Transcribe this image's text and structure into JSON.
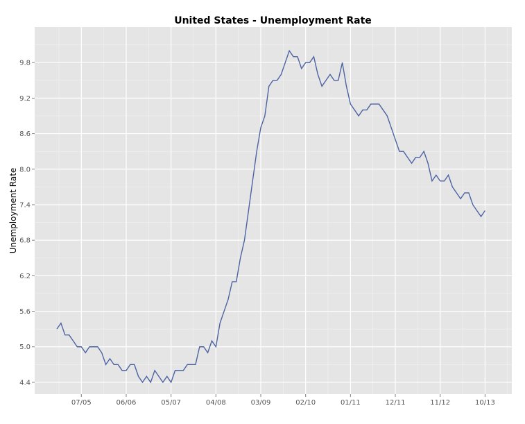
{
  "chart_data": {
    "type": "line",
    "title": "United States - Unemployment Rate",
    "xlabel": "",
    "ylabel": "Unemployment Rate",
    "x_tick_labels": [
      "07/05",
      "06/06",
      "05/07",
      "04/08",
      "03/09",
      "02/10",
      "01/11",
      "12/11",
      "11/12",
      "10/13"
    ],
    "y_ticks": [
      4.4,
      5.0,
      5.6,
      6.2,
      6.8,
      7.4,
      8.0,
      8.6,
      9.2,
      9.8
    ],
    "y_tick_labels": [
      "4.4",
      "5.0",
      "5.6",
      "6.2",
      "6.8",
      "7.4",
      "8.0",
      "8.6",
      "9.2",
      "9.8"
    ],
    "ylim": [
      4.2,
      10.4
    ],
    "x_start_month": "2005-01",
    "grid": true,
    "line_color": "#4c63a3",
    "panel_color": "#e5e5e5",
    "series": [
      {
        "values": [
          5.3,
          5.4,
          5.2,
          5.2,
          5.1,
          5.0,
          5.0,
          4.9,
          5.0,
          5.0,
          5.0,
          4.9,
          4.7,
          4.8,
          4.7,
          4.7,
          4.6,
          4.6,
          4.7,
          4.7,
          4.5,
          4.4,
          4.5,
          4.4,
          4.6,
          4.5,
          4.4,
          4.5,
          4.4,
          4.6,
          4.6,
          4.6,
          4.7,
          4.7,
          4.7,
          5.0,
          5.0,
          4.9,
          5.1,
          5.0,
          5.4,
          5.6,
          5.8,
          6.1,
          6.1,
          6.5,
          6.8,
          7.3,
          7.8,
          8.3,
          8.7,
          8.9,
          9.4,
          9.5,
          9.5,
          9.6,
          9.8,
          10.0,
          9.9,
          9.9,
          9.7,
          9.8,
          9.8,
          9.9,
          9.6,
          9.4,
          9.5,
          9.6,
          9.5,
          9.5,
          9.8,
          9.4,
          9.1,
          9.0,
          8.9,
          9.0,
          9.0,
          9.1,
          9.1,
          9.1,
          9.0,
          8.9,
          8.7,
          8.5,
          8.3,
          8.3,
          8.2,
          8.1,
          8.2,
          8.2,
          8.3,
          8.1,
          7.8,
          7.9,
          7.8,
          7.8,
          7.9,
          7.7,
          7.6,
          7.5,
          7.6,
          7.6,
          7.4,
          7.3,
          7.2,
          7.3
        ]
      }
    ]
  }
}
